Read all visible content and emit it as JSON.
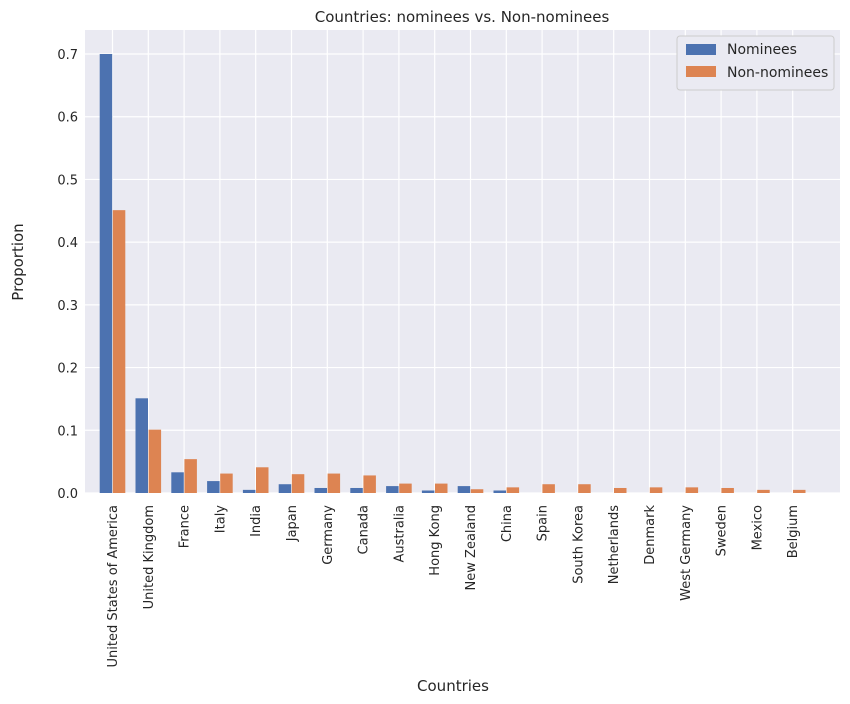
{
  "chart_data": {
    "type": "bar",
    "title": "Countries: nominees vs. Non-nominees",
    "xlabel": "Countries",
    "ylabel": "Proportion",
    "ylim": [
      0,
      0.735
    ],
    "yticks": [
      "0.0",
      "0.1",
      "0.2",
      "0.3",
      "0.4",
      "0.5",
      "0.6",
      "0.7"
    ],
    "grid": true,
    "legend_position": "top-right",
    "categories": [
      "United States of America",
      "United Kingdom",
      "France",
      "Italy",
      "India",
      "Japan",
      "Germany",
      "Canada",
      "Australia",
      "Hong Kong",
      "New Zealand",
      "China",
      "Spain",
      "South Korea",
      "Netherlands",
      "Denmark",
      "West Germany",
      "Sweden",
      "Mexico",
      "Belgium"
    ],
    "series": [
      {
        "name": "Nominees",
        "color": "#4c72b0",
        "values": [
          0.7,
          0.151,
          0.033,
          0.019,
          0.005,
          0.014,
          0.008,
          0.008,
          0.011,
          0.004,
          0.011,
          0.004,
          0.0,
          0.0,
          0.0,
          0.0,
          0.0,
          0.0,
          0.0,
          0.0
        ]
      },
      {
        "name": "Non-nominees",
        "color": "#dd8452",
        "values": [
          0.451,
          0.101,
          0.054,
          0.031,
          0.041,
          0.03,
          0.031,
          0.028,
          0.015,
          0.015,
          0.006,
          0.009,
          0.014,
          0.014,
          0.008,
          0.009,
          0.009,
          0.008,
          0.005,
          0.005
        ]
      }
    ]
  }
}
